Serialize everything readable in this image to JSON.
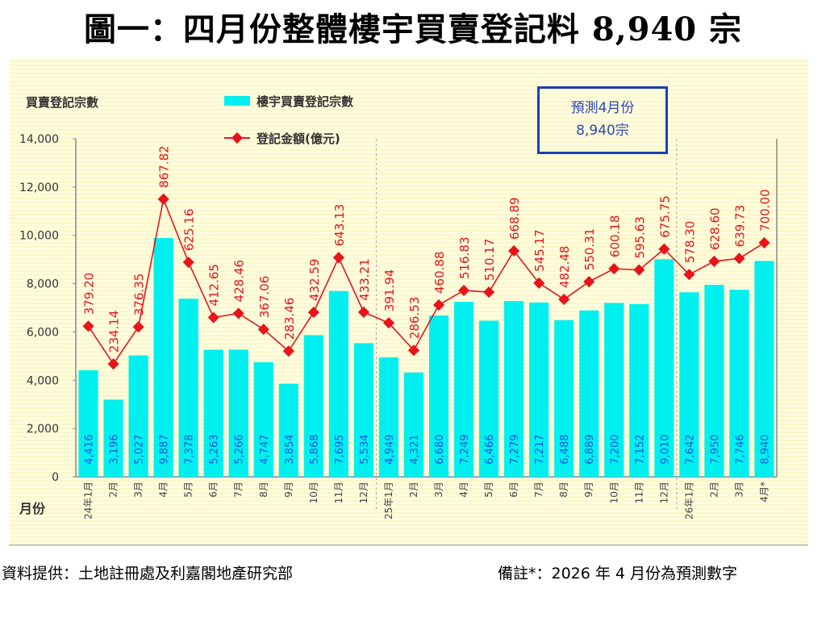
{
  "title": "圖一：四月份整體樓宇買賣登記料 8,940 宗",
  "forecast_box": {
    "line1": "預測4月份",
    "line2": "8,940宗"
  },
  "footer": {
    "source": "資料提供：土地註冊處及利嘉閣地產研究部",
    "note": "備註*：2026 年 4 月份為預測數字"
  },
  "colors": {
    "bars": "#00f0f0",
    "line": "#e8141a",
    "bar_labels": "#1a55e0",
    "forecast_border": "#1a3fb8"
  },
  "chart_data": {
    "type": "bar+line",
    "ylabel": "買賣登記宗數",
    "xlabel": "月份",
    "ylim": [
      0,
      14000
    ],
    "yticks": [
      0,
      2000,
      4000,
      6000,
      8000,
      10000,
      12000,
      14000
    ],
    "ytick_labels": [
      "0",
      "2,000",
      "4,000",
      "6,000",
      "8,000",
      "10,000",
      "12,000",
      "14,000"
    ],
    "grid": false,
    "legend_placement": "top-center",
    "categories": [
      "24年1月",
      "2月",
      "3月",
      "4月",
      "5月",
      "6月",
      "7月",
      "8月",
      "9月",
      "10月",
      "11月",
      "12月",
      "25年1月",
      "2月",
      "3月",
      "4月",
      "5月",
      "6月",
      "7月",
      "8月",
      "9月",
      "10月",
      "11月",
      "12月",
      "26年1月",
      "2月",
      "3月",
      "4月*"
    ],
    "year_separators_after_index": [
      11,
      23
    ],
    "series": [
      {
        "name": "樓宇買賣登記宗數",
        "type": "bar",
        "axis": "left",
        "values": [
          4416,
          3196,
          5027,
          9887,
          7378,
          5263,
          5266,
          4747,
          3854,
          5868,
          7695,
          5534,
          4949,
          4321,
          6680,
          7249,
          6466,
          7279,
          7217,
          6488,
          6889,
          7200,
          7152,
          9010,
          7642,
          7950,
          7746,
          8940
        ],
        "labels": [
          "4,416",
          "3,196",
          "5,027",
          "9,887",
          "7,378",
          "5,263",
          "5,266",
          "4,747",
          "3,854",
          "5,868",
          "7,695",
          "5,534",
          "4,949",
          "4,321",
          "6,680",
          "7,249",
          "6,466",
          "7,279",
          "7,217",
          "6,488",
          "6,889",
          "7,200",
          "7,152",
          "9,010",
          "7,642",
          "7,950",
          "7,746",
          "8,940"
        ]
      },
      {
        "name": "登記金額(億元)",
        "type": "line",
        "axis": "secondary-hidden",
        "values": [
          379.2,
          234.14,
          376.35,
          867.82,
          625.16,
          412.65,
          428.46,
          367.06,
          283.46,
          432.59,
          643.13,
          433.21,
          391.94,
          286.53,
          460.88,
          516.83,
          510.17,
          668.89,
          545.17,
          482.48,
          550.31,
          600.18,
          595.63,
          675.75,
          578.3,
          628.6,
          639.73,
          700.0
        ],
        "labels": [
          "379.20",
          "234.14",
          "376.35",
          "867.82",
          "625.16",
          "412.65",
          "428.46",
          "367.06",
          "283.46",
          "432.59",
          "643.13",
          "433.21",
          "391.94",
          "286.53",
          "460.88",
          "516.83",
          "510.17",
          "668.89",
          "545.17",
          "482.48",
          "550.31",
          "600.18",
          "595.63",
          "675.75",
          "578.30",
          "628.60",
          "639.73",
          "700.00"
        ],
        "display_range": [
          -200,
          1100
        ]
      }
    ]
  }
}
